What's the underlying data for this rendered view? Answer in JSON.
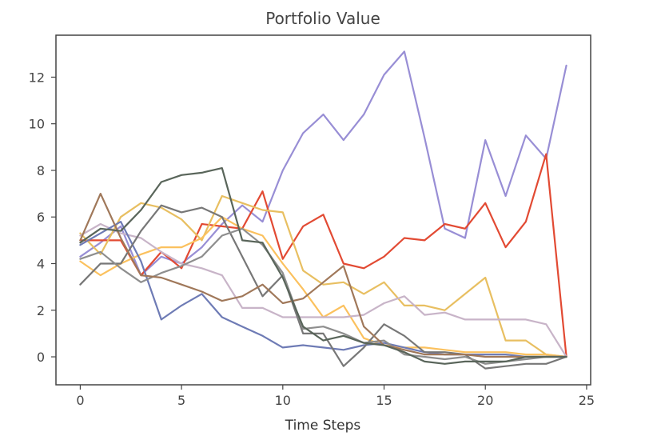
{
  "chart_data": {
    "type": "line",
    "title": "Portfolio Value",
    "xlabel": "Time Steps",
    "ylabel": "",
    "xlim": [
      -1.2,
      25.2
    ],
    "ylim": [
      -1.2,
      13.8
    ],
    "xticks": [
      0,
      5,
      10,
      15,
      20,
      25
    ],
    "yticks": [
      0,
      2,
      4,
      6,
      8,
      10,
      12
    ],
    "grid": false,
    "legend": "none",
    "x": [
      0,
      1,
      2,
      3,
      4,
      5,
      6,
      7,
      8,
      9,
      10,
      11,
      12,
      13,
      14,
      15,
      16,
      17,
      18,
      19,
      20,
      21,
      22,
      23,
      24
    ],
    "series": [
      {
        "color": "#988ED5",
        "values": [
          4.3,
          4.9,
          5.6,
          3.5,
          4.3,
          4.0,
          4.7,
          5.7,
          6.5,
          5.8,
          8.0,
          9.6,
          10.4,
          9.3,
          10.4,
          12.1,
          13.1,
          9.4,
          5.5,
          5.1,
          9.3,
          6.9,
          9.5,
          8.5,
          12.5
        ]
      },
      {
        "color": "#E24A33",
        "values": [
          5.0,
          5.0,
          5.0,
          3.5,
          4.5,
          3.8,
          5.7,
          5.6,
          5.5,
          7.1,
          4.2,
          5.6,
          6.1,
          4.0,
          3.8,
          4.3,
          5.1,
          5.0,
          5.7,
          5.5,
          6.6,
          4.7,
          5.8,
          8.7,
          0.0
        ]
      },
      {
        "color": "#E8BF61",
        "values": [
          5.3,
          4.4,
          6.0,
          6.6,
          6.4,
          5.9,
          5.0,
          6.9,
          6.6,
          6.3,
          6.2,
          3.7,
          3.1,
          3.2,
          2.7,
          3.2,
          2.2,
          2.2,
          2.0,
          2.7,
          3.4,
          0.7,
          0.7,
          0.1,
          0.0
        ]
      },
      {
        "color": "#FBC15E",
        "values": [
          4.1,
          3.5,
          4.0,
          4.4,
          4.7,
          4.7,
          5.1,
          6.0,
          5.5,
          5.2,
          4.0,
          2.9,
          1.7,
          2.2,
          0.8,
          0.5,
          0.4,
          0.4,
          0.3,
          0.2,
          0.2,
          0.2,
          0.1,
          0.1,
          0.0
        ]
      },
      {
        "color": "#C8B4C8",
        "values": [
          5.2,
          5.7,
          5.3,
          5.1,
          4.5,
          4.0,
          3.8,
          3.5,
          2.1,
          2.1,
          1.7,
          1.7,
          1.7,
          1.7,
          1.8,
          2.3,
          2.6,
          1.8,
          1.9,
          1.6,
          1.6,
          1.6,
          1.6,
          1.4,
          0.0
        ]
      },
      {
        "color": "#6E7BB5",
        "values": [
          4.8,
          5.3,
          5.8,
          4.1,
          1.6,
          2.2,
          2.7,
          1.7,
          1.3,
          0.9,
          0.4,
          0.5,
          0.4,
          0.3,
          0.5,
          0.6,
          0.4,
          0.2,
          0.1,
          0.1,
          0.1,
          0.1,
          0.0,
          0.0,
          0.0
        ]
      },
      {
        "color": "#777777",
        "values": [
          3.1,
          4.0,
          4.0,
          5.4,
          6.5,
          6.2,
          6.4,
          6.0,
          4.3,
          2.6,
          3.5,
          1.0,
          1.0,
          -0.4,
          0.4,
          1.4,
          0.9,
          0.2,
          0.2,
          0.1,
          -0.5,
          -0.4,
          -0.3,
          -0.3,
          0.0
        ]
      },
      {
        "color": "#8E8E8E",
        "values": [
          4.2,
          4.5,
          3.8,
          3.2,
          3.6,
          3.9,
          4.3,
          5.2,
          5.5,
          4.8,
          3.6,
          1.2,
          1.3,
          1.0,
          0.6,
          0.7,
          0.1,
          0.0,
          -0.1,
          0.0,
          -0.3,
          -0.2,
          -0.1,
          0.0,
          0.0
        ]
      },
      {
        "color": "#A0785A",
        "values": [
          5.0,
          7.0,
          5.1,
          3.5,
          3.4,
          3.1,
          2.8,
          2.4,
          2.6,
          3.1,
          2.3,
          2.5,
          3.2,
          3.9,
          1.3,
          0.5,
          0.3,
          0.1,
          0.1,
          0.1,
          0.0,
          0.0,
          0.0,
          0.0,
          0.0
        ]
      },
      {
        "color": "#59655A",
        "values": [
          4.9,
          5.5,
          5.4,
          6.3,
          7.5,
          7.8,
          7.9,
          8.1,
          5.0,
          4.9,
          3.4,
          1.3,
          0.7,
          0.9,
          0.6,
          0.5,
          0.2,
          -0.2,
          -0.3,
          -0.2,
          -0.2,
          -0.2,
          0.0,
          0.0,
          0.0
        ]
      }
    ]
  }
}
